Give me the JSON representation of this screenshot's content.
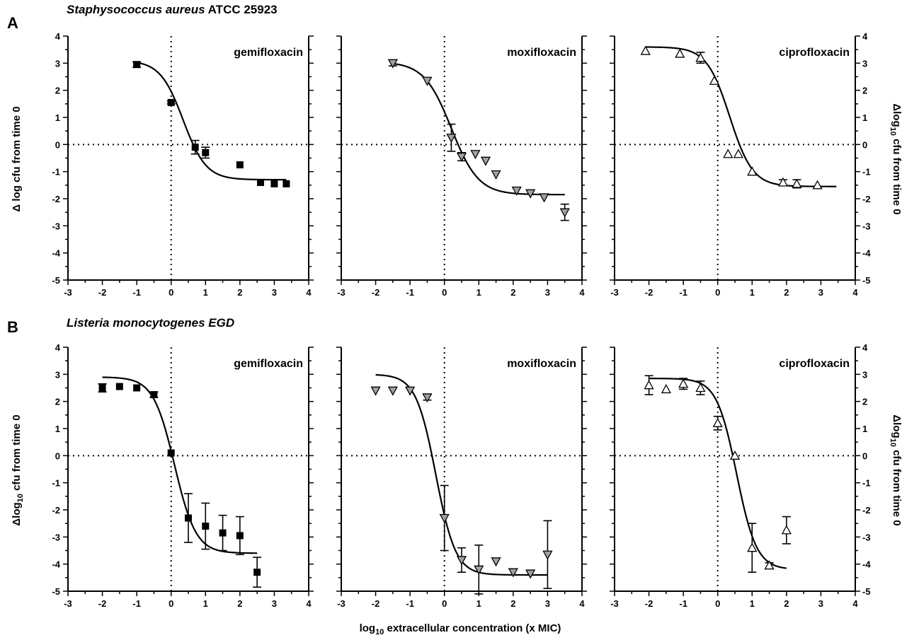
{
  "panels": [
    {
      "letter": "A",
      "organism_italic": "Staphysococcus aureus",
      "organism_rest": " ATCC 25923"
    },
    {
      "letter": "B",
      "organism_italic": "Listeria monocytogenes EGD",
      "organism_rest": ""
    }
  ],
  "row_axis": {
    "A": {
      "left_ylabel": "Δ log cfu from time 0",
      "right_ylabel_pre": "Δlog",
      "right_ylabel_sub": "10",
      "right_ylabel_post": " cfu from time 0"
    },
    "B": {
      "left_ylabel_pre": "Δlog",
      "left_ylabel_sub": "10",
      "left_ylabel_post": " cfu from time 0",
      "right_ylabel_pre": "Δlog",
      "right_ylabel_sub": "10",
      "right_ylabel_post": " cfu from time 0"
    }
  },
  "xlabel": {
    "pre": "log",
    "sub": "10",
    "post": " extracellular concentration (x MIC)"
  },
  "axes": {
    "xlim": [
      -3,
      4
    ],
    "ylim": [
      -5,
      4
    ],
    "xticks": [
      -3,
      -2,
      -1,
      0,
      1,
      2,
      3,
      4
    ],
    "yticks": [
      -5,
      -4,
      -3,
      -2,
      -1,
      0,
      1,
      2,
      3,
      4
    ],
    "reference_lines": {
      "x": 0,
      "y": 0,
      "style": "dotted"
    },
    "grid": false
  },
  "chart_data": [
    {
      "type": "scatter",
      "panel": "A",
      "title": "gemifloxacin",
      "marker": "square",
      "fill": "#000000",
      "x": [
        -1,
        0,
        0.7,
        1,
        2,
        2.6,
        3,
        3.35
      ],
      "y": [
        2.95,
        1.55,
        -0.1,
        -0.3,
        -0.75,
        -1.4,
        -1.45,
        -1.45
      ],
      "err": [
        0.1,
        0.05,
        0.25,
        0.2,
        0,
        0,
        0,
        0
      ],
      "fit": {
        "top": 3.1,
        "bottom": -1.3,
        "ec50": 0.35,
        "hill": 1.3,
        "xmin": -1,
        "xmax": 3.35
      }
    },
    {
      "type": "scatter",
      "panel": "A",
      "title": "moxifloxacin",
      "marker": "triangle-down",
      "fill": "#a0a0a0",
      "x": [
        -1.5,
        -0.5,
        0.2,
        0.5,
        0.9,
        1.2,
        1.5,
        2.1,
        2.5,
        2.9,
        3.5
      ],
      "y": [
        3.0,
        2.35,
        0.25,
        -0.45,
        -0.35,
        -0.6,
        -1.1,
        -1.7,
        -1.8,
        -1.95,
        -2.5
      ],
      "err": [
        0.1,
        0,
        0.5,
        0.15,
        0,
        0,
        0,
        0,
        0,
        0,
        0.3
      ],
      "fit": {
        "top": 3.05,
        "bottom": -1.85,
        "ec50": 0.2,
        "hill": 1.1,
        "xmin": -1.5,
        "xmax": 3.5
      }
    },
    {
      "type": "scatter",
      "panel": "A",
      "title": "ciprofloxacin",
      "marker": "triangle-up",
      "fill": "#ffffff",
      "x": [
        -2.1,
        -1.1,
        -0.5,
        -0.1,
        0.3,
        0.6,
        1,
        1.9,
        2.3,
        2.9
      ],
      "y": [
        3.45,
        3.35,
        3.2,
        2.35,
        -0.35,
        -0.35,
        -1.0,
        -1.4,
        -1.45,
        -1.5
      ],
      "err": [
        0,
        0,
        0.2,
        0,
        0,
        0,
        0,
        0.1,
        0.15,
        0
      ],
      "fit": {
        "top": 3.6,
        "bottom": -1.55,
        "ec50": 0.35,
        "hill": 1.3,
        "xmin": -2.1,
        "xmax": 3.45
      }
    },
    {
      "type": "scatter",
      "panel": "B",
      "title": "gemifloxacin",
      "marker": "square",
      "fill": "#000000",
      "x": [
        -2,
        -1.5,
        -1,
        -0.5,
        0,
        0.5,
        1,
        1.5,
        2,
        2.5
      ],
      "y": [
        2.5,
        2.55,
        2.5,
        2.25,
        0.1,
        -2.3,
        -2.6,
        -2.85,
        -2.95,
        -4.3
      ],
      "err": [
        0.15,
        0,
        0,
        0.1,
        0,
        0.9,
        0.85,
        0.65,
        0.7,
        0.55
      ],
      "fit": {
        "top": 2.9,
        "bottom": -3.6,
        "ec50": 0.1,
        "hill": 1.4,
        "xmin": -2,
        "xmax": 2.5
      }
    },
    {
      "type": "scatter",
      "panel": "B",
      "title": "moxifloxacin",
      "marker": "triangle-down",
      "fill": "#a0a0a0",
      "x": [
        -2,
        -1.5,
        -1,
        -0.5,
        0,
        0.5,
        1,
        1.5,
        2,
        2.5,
        3
      ],
      "y": [
        2.4,
        2.4,
        2.4,
        2.15,
        -2.3,
        -3.85,
        -4.2,
        -3.9,
        -4.3,
        -4.35,
        -3.65
      ],
      "err": [
        0,
        0,
        0,
        0.1,
        1.2,
        0.45,
        0.9,
        0,
        0,
        0,
        1.25
      ],
      "fit": {
        "top": 3.0,
        "bottom": -4.4,
        "ec50": -0.25,
        "hill": 1.5,
        "xmin": -2,
        "xmax": 3
      }
    },
    {
      "type": "scatter",
      "panel": "B",
      "title": "ciprofloxacin",
      "marker": "triangle-up",
      "fill": "#ffffff",
      "x": [
        -2,
        -1.5,
        -1,
        -0.5,
        0,
        0.5,
        1,
        1.5,
        2
      ],
      "y": [
        2.6,
        2.45,
        2.65,
        2.5,
        1.2,
        0.0,
        -3.4,
        -4.05,
        -2.75
      ],
      "err": [
        0.35,
        0,
        0.2,
        0.25,
        0.25,
        0,
        0.9,
        0.1,
        0.5
      ],
      "fit": {
        "top": 2.85,
        "bottom": -4.2,
        "ec50": 0.55,
        "hill": 1.5,
        "xmin": -2,
        "xmax": 2
      }
    }
  ]
}
